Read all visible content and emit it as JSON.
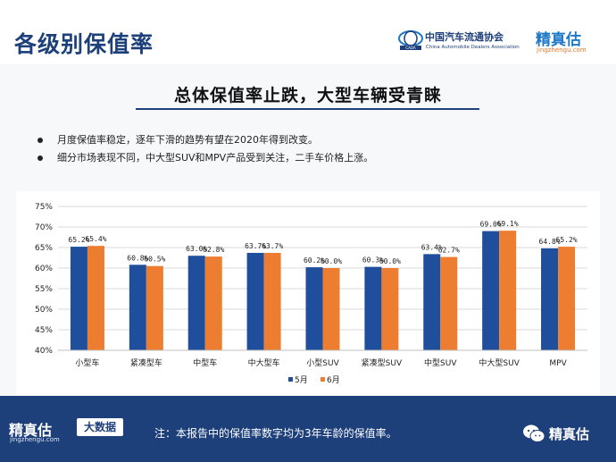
{
  "header": {
    "title": "各级别保值率",
    "org_name_cn": "中国汽车流通协会",
    "org_name_en": "China Automobile Dealers Association",
    "brand_name": "精真估",
    "brand_url": "jingzhengu.com"
  },
  "subtitle": "总体保值率止跌，大型车辆受青睐",
  "bullets": [
    "月度保值率稳定，逐年下滑的趋势有望在2020年得到改变。",
    "细分市场表现不同，中大型SUV和MPV产品受到关注，二手车价格上涨。"
  ],
  "chart_data": {
    "type": "bar",
    "categories": [
      "小型车",
      "紧凑型车",
      "中型车",
      "中大型车",
      "小型SUV",
      "紧凑型SUV",
      "中型SUV",
      "中大型SUV",
      "MPV"
    ],
    "series": [
      {
        "name": "5月",
        "color": "#1f4e9c",
        "values": [
          65.2,
          60.8,
          63.0,
          63.7,
          60.2,
          60.3,
          63.4,
          69.0,
          64.8
        ],
        "labels": [
          "65.2%",
          "60.8%",
          "63.0%",
          "63.7%",
          "60.2%",
          "60.3%",
          "63.4%",
          "69.0%",
          "64.8%"
        ]
      },
      {
        "name": "6月",
        "color": "#ed7d31",
        "values": [
          65.4,
          60.5,
          62.8,
          63.7,
          60.0,
          60.0,
          62.7,
          69.1,
          65.2
        ],
        "labels": [
          "65.4%",
          "60.5%",
          "62.8%",
          "63.7%",
          "60.0%",
          "60.0%",
          "62.7%",
          "69.1%",
          "65.2%"
        ]
      }
    ],
    "ylim": [
      40,
      75
    ],
    "yticks": [
      "40%",
      "45%",
      "50%",
      "55%",
      "60%",
      "65%",
      "70%",
      "75%"
    ],
    "grid": true,
    "legend_position": "bottom"
  },
  "footer": {
    "brand_name": "精真估",
    "brand_url": "jingzhengu.com",
    "badge": "大数据",
    "note": "注：本报告中的保值率数字均为3年车龄的保值率。",
    "wechat_name": "精真估"
  },
  "colors": {
    "primary": "#1d3f7a",
    "series_may": "#1f4e9c",
    "series_june": "#ed7d31",
    "brand_blue": "#1e78c8",
    "brand_orange": "#e07828"
  },
  "icons": {
    "org_logo": "cada-logo-icon",
    "wechat": "wechat-icon"
  }
}
